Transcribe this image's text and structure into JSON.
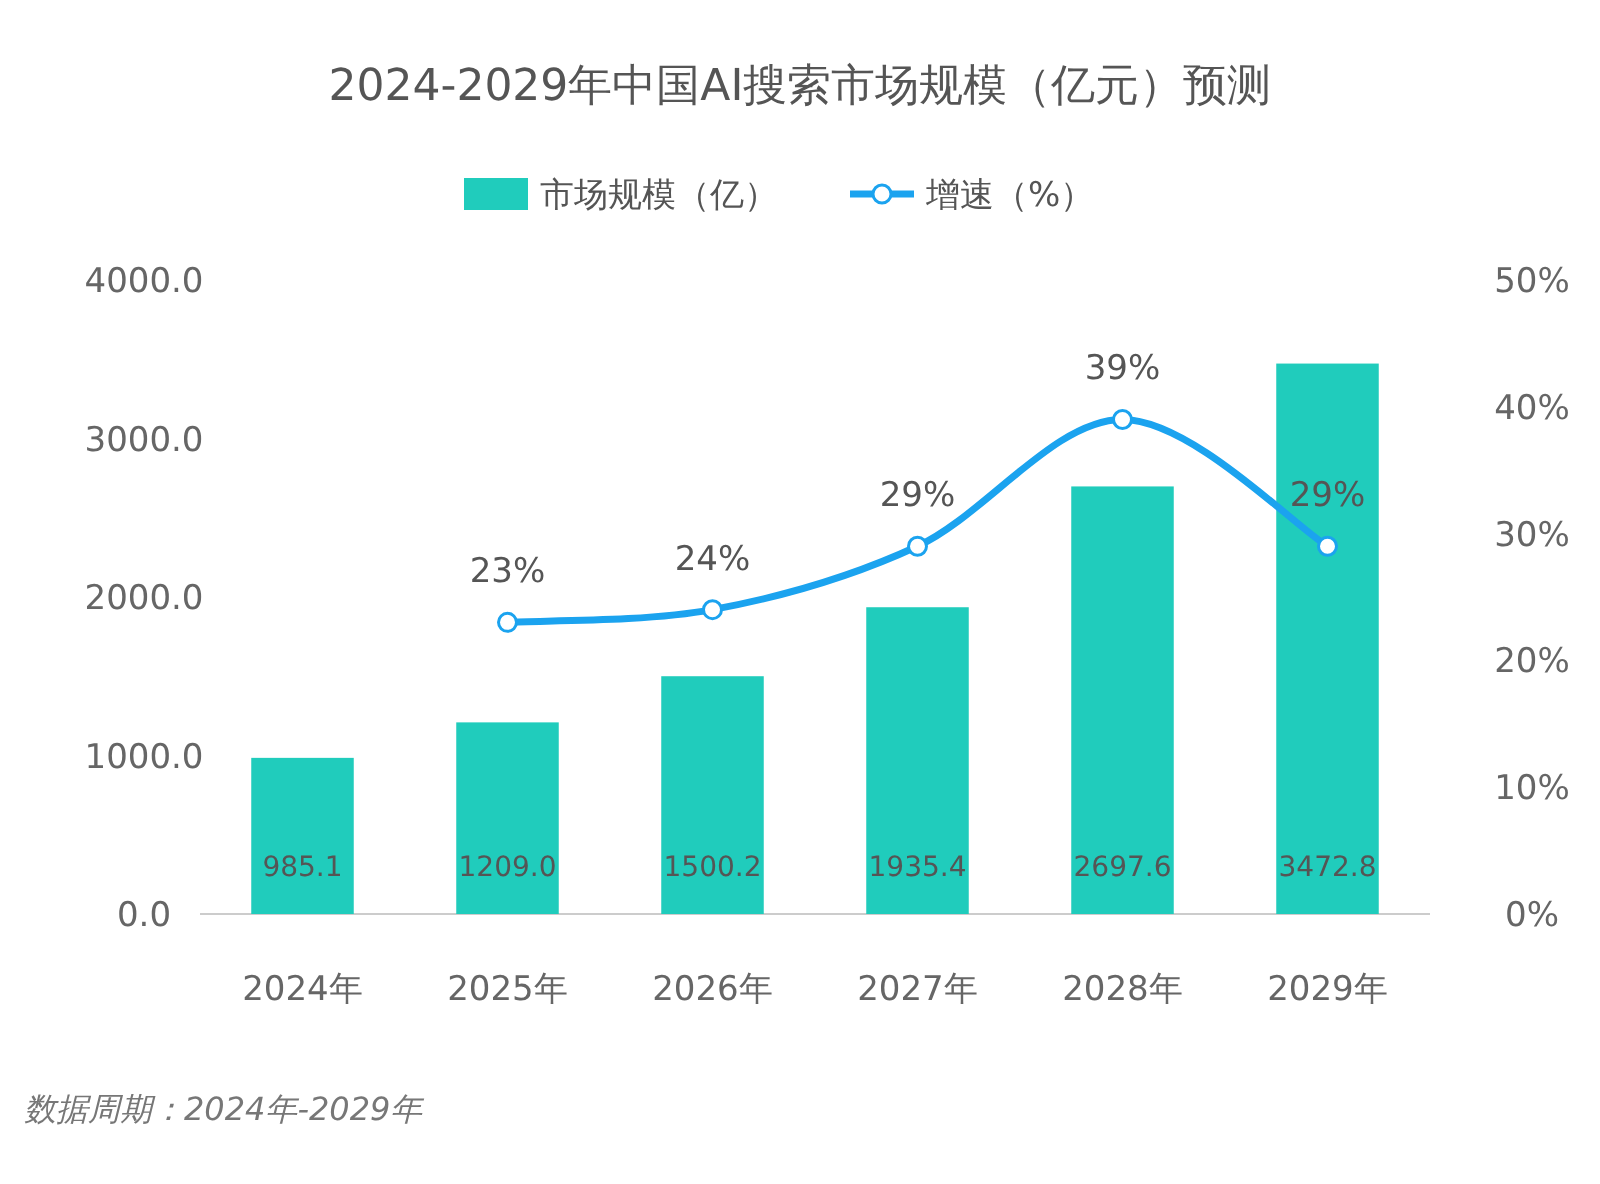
{
  "chart_data": {
    "type": "bar",
    "title": "2024-2029年中国AI搜索市场规模（亿元）预测",
    "categories": [
      "2024年",
      "2025年",
      "2026年",
      "2027年",
      "2028年",
      "2029年"
    ],
    "series": [
      {
        "name": "市场规模（亿）",
        "color": "#20ccbc",
        "values": [
          985.1,
          1209.0,
          1500.2,
          1935.4,
          2697.6,
          3472.8
        ],
        "value_labels": [
          "985.1",
          "1209.0",
          "1500.2",
          "1935.4",
          "2697.6",
          "3472.8"
        ]
      },
      {
        "name": "增速（%）",
        "type": "line",
        "axis": "y2",
        "color": "#1ba3ef",
        "marker": "circle",
        "values": [
          null,
          23,
          24,
          29,
          39,
          29
        ],
        "value_labels": [
          null,
          "23%",
          "24%",
          "29%",
          "39%",
          "29%"
        ]
      }
    ],
    "ylim": [
      0,
      4000
    ],
    "yticks": [
      {
        "value": 0,
        "label": "0.0"
      },
      {
        "value": 1000,
        "label": "1000.0"
      },
      {
        "value": 2000,
        "label": "2000.0"
      },
      {
        "value": 3000,
        "label": "3000.0"
      },
      {
        "value": 4000,
        "label": "4000.0"
      }
    ],
    "y2lim": [
      0,
      50
    ],
    "y2ticks": [
      {
        "value": 0,
        "label": "0%"
      },
      {
        "value": 10,
        "label": "10%"
      },
      {
        "value": 20,
        "label": "20%"
      },
      {
        "value": 30,
        "label": "30%"
      },
      {
        "value": 40,
        "label": "40%"
      },
      {
        "value": 50,
        "label": "50%"
      }
    ],
    "legend": "top",
    "annotations": [
      "数据周期：2024年-2029年"
    ]
  }
}
